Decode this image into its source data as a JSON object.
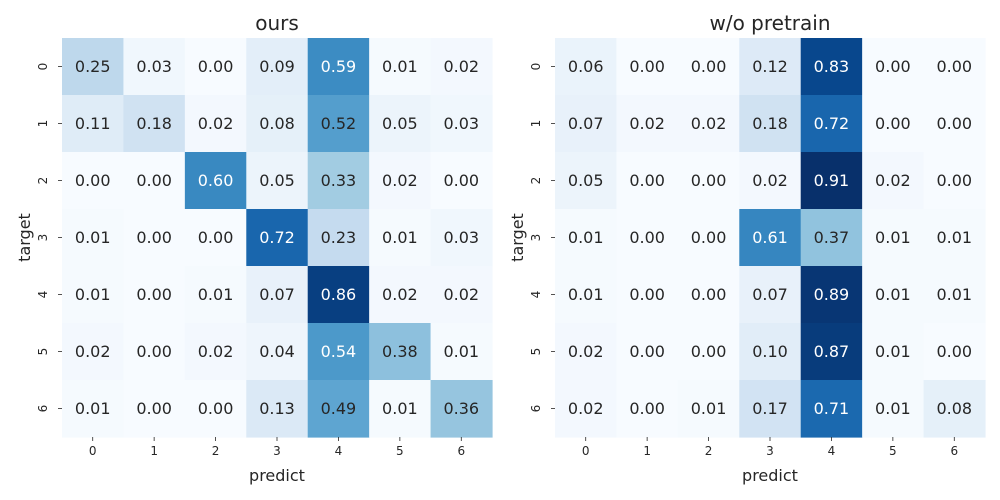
{
  "chart_data": [
    {
      "type": "heatmap",
      "title": "ours",
      "xlabel": "predict",
      "ylabel": "target",
      "x_categories": [
        "0",
        "1",
        "2",
        "3",
        "4",
        "5",
        "6"
      ],
      "y_categories": [
        "0",
        "1",
        "2",
        "3",
        "4",
        "5",
        "6"
      ],
      "colormap": "Blues",
      "color_range": [
        0,
        0.91
      ],
      "values": [
        [
          0.25,
          0.03,
          0.0,
          0.09,
          0.59,
          0.01,
          0.02
        ],
        [
          0.11,
          0.18,
          0.02,
          0.08,
          0.52,
          0.05,
          0.03
        ],
        [
          0.0,
          0.0,
          0.6,
          0.05,
          0.33,
          0.02,
          0.0
        ],
        [
          0.01,
          0.0,
          0.0,
          0.72,
          0.23,
          0.01,
          0.03
        ],
        [
          0.01,
          0.0,
          0.01,
          0.07,
          0.86,
          0.02,
          0.02
        ],
        [
          0.02,
          0.0,
          0.02,
          0.04,
          0.54,
          0.38,
          0.01
        ],
        [
          0.01,
          0.0,
          0.0,
          0.13,
          0.49,
          0.01,
          0.36
        ]
      ]
    },
    {
      "type": "heatmap",
      "title": "w/o pretrain",
      "xlabel": "predict",
      "ylabel": "target",
      "x_categories": [
        "0",
        "1",
        "2",
        "3",
        "4",
        "5",
        "6"
      ],
      "y_categories": [
        "0",
        "1",
        "2",
        "3",
        "4",
        "5",
        "6"
      ],
      "colormap": "Blues",
      "color_range": [
        0,
        0.91
      ],
      "values": [
        [
          0.06,
          0.0,
          0.0,
          0.12,
          0.83,
          0.0,
          0.0
        ],
        [
          0.07,
          0.02,
          0.02,
          0.18,
          0.72,
          0.0,
          0.0
        ],
        [
          0.05,
          0.0,
          0.0,
          0.02,
          0.91,
          0.02,
          0.0
        ],
        [
          0.01,
          0.0,
          0.0,
          0.61,
          0.37,
          0.01,
          0.01
        ],
        [
          0.01,
          0.0,
          0.0,
          0.07,
          0.89,
          0.01,
          0.01
        ],
        [
          0.02,
          0.0,
          0.0,
          0.1,
          0.87,
          0.01,
          0.0
        ],
        [
          0.02,
          0.0,
          0.01,
          0.17,
          0.71,
          0.01,
          0.08
        ]
      ]
    }
  ]
}
